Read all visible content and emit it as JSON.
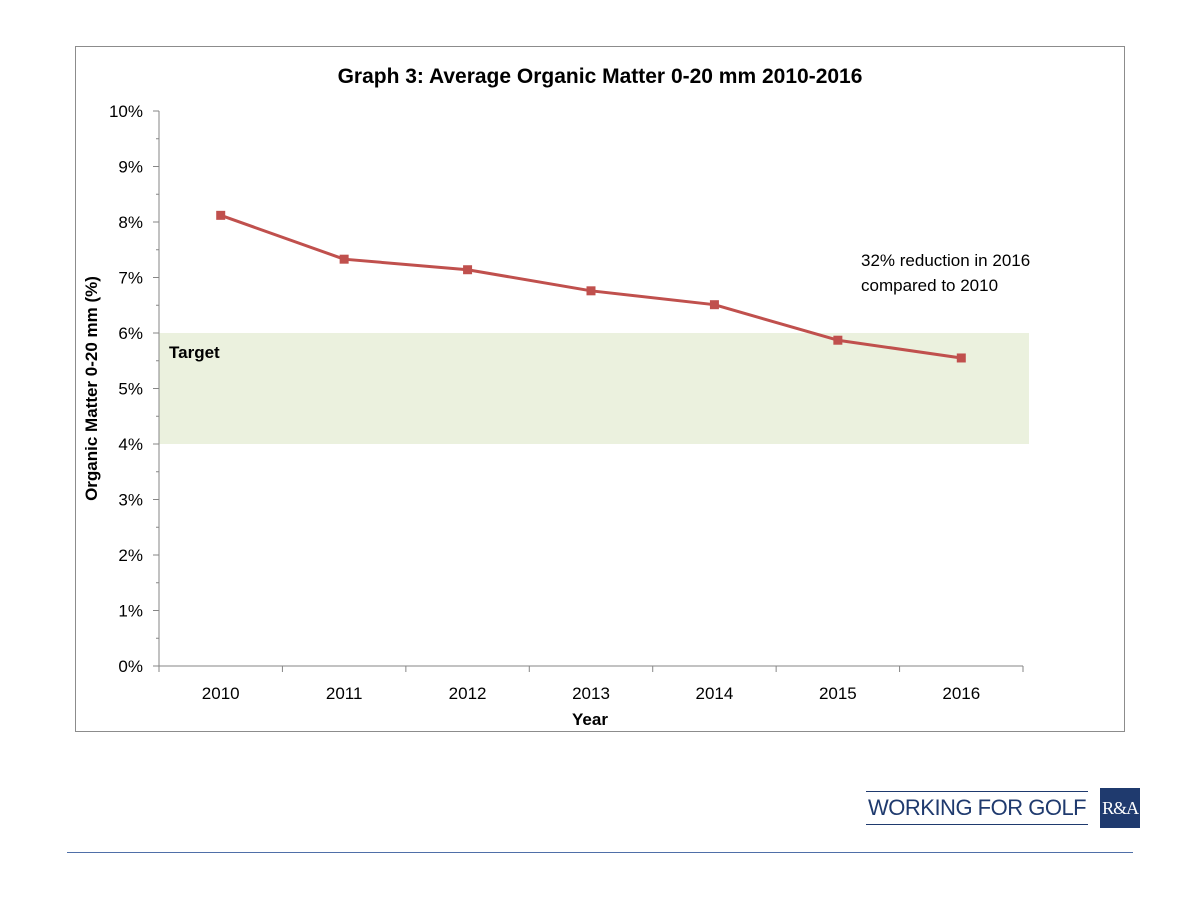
{
  "chart_data": {
    "type": "line",
    "title": "Graph 3: Average Organic Matter 0-20 mm 2010-2016",
    "xlabel": "Year",
    "ylabel": "Organic Matter 0-20 mm (%)",
    "categories": [
      "2010",
      "2011",
      "2012",
      "2013",
      "2014",
      "2015",
      "2016"
    ],
    "series": [
      {
        "values": [
          8.12,
          7.33,
          7.14,
          6.76,
          6.51,
          5.87,
          5.55
        ],
        "color": "#c0504d"
      }
    ],
    "ylim": [
      0,
      10
    ],
    "ytick_labels": [
      "0%",
      "1%",
      "2%",
      "3%",
      "4%",
      "5%",
      "6%",
      "7%",
      "8%",
      "9%",
      "10%"
    ],
    "target_band": {
      "label": "Target",
      "range": [
        4,
        6
      ],
      "color": "#ebf1de"
    },
    "annotation": [
      "32% reduction in 2016",
      "compared to 2010"
    ],
    "grid": false,
    "legend": "none"
  },
  "footer": {
    "logo_text": "WORKING FOR GOLF",
    "logo_badge": "R&A",
    "brand_color": "#1f3a6e",
    "rule_color": "#4f6fa8"
  }
}
